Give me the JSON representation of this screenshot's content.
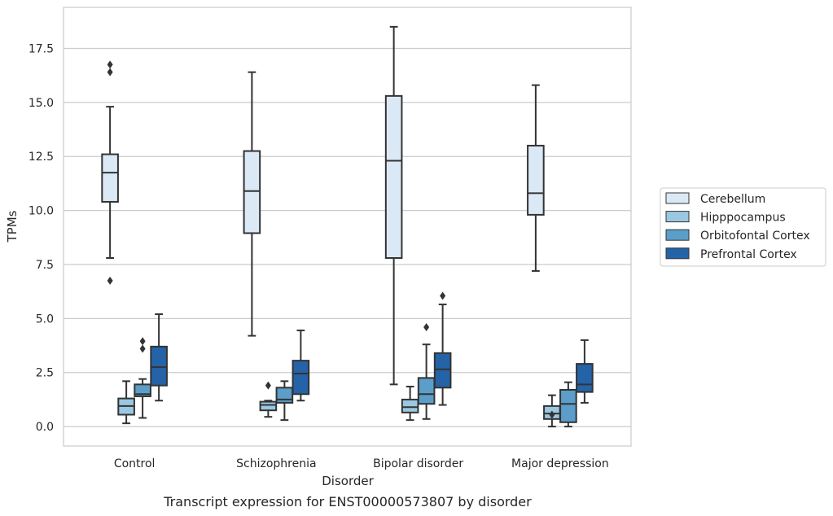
{
  "chart_data": {
    "type": "box",
    "caption": "Transcript expression for ENST00000573807 by disorder",
    "xlabel": "Disorder",
    "ylabel": "TPMs",
    "ylim": [
      -0.9,
      19.4
    ],
    "yticks": [
      0.0,
      2.5,
      5.0,
      7.5,
      10.0,
      12.5,
      15.0,
      17.5
    ],
    "ytick_labels": [
      "0.0",
      "2.5",
      "5.0",
      "7.5",
      "10.0",
      "12.5",
      "15.0",
      "17.5"
    ],
    "grid": "horizontal",
    "legend_position": "right",
    "categories": [
      "Control",
      "Schizophrenia",
      "Bipolar disorder",
      "Major depression"
    ],
    "series": [
      {
        "name": "Cerebellum",
        "color": "#dbe9f6",
        "boxes": [
          {
            "whislo": 7.8,
            "q1": 10.4,
            "med": 11.75,
            "q3": 12.6,
            "whishi": 14.8,
            "fliers": [
              16.75,
              16.4,
              6.75
            ]
          },
          {
            "whislo": 4.2,
            "q1": 8.95,
            "med": 10.9,
            "q3": 12.75,
            "whishi": 16.4,
            "fliers": []
          },
          {
            "whislo": 1.95,
            "q1": 7.8,
            "med": 12.3,
            "q3": 15.3,
            "whishi": 18.5,
            "fliers": []
          },
          {
            "whislo": 7.2,
            "q1": 9.8,
            "med": 10.8,
            "q3": 13.0,
            "whishi": 15.8,
            "fliers": []
          }
        ]
      },
      {
        "name": "Hipppocampus",
        "color": "#9ac8e0",
        "boxes": [
          {
            "whislo": 0.15,
            "q1": 0.55,
            "med": 0.95,
            "q3": 1.3,
            "whishi": 2.1,
            "fliers": []
          },
          {
            "whislo": 0.45,
            "q1": 0.75,
            "med": 1.0,
            "q3": 1.15,
            "whishi": 1.2,
            "fliers": [
              1.9
            ]
          },
          {
            "whislo": 0.3,
            "q1": 0.65,
            "med": 0.9,
            "q3": 1.25,
            "whishi": 1.85,
            "fliers": []
          },
          {
            "whislo": 0.0,
            "q1": 0.35,
            "med": 0.6,
            "q3": 0.95,
            "whishi": 1.45,
            "fliers": [
              0.55
            ]
          }
        ]
      },
      {
        "name": "Orbitofontal Cortex",
        "color": "#5a9ec9",
        "boxes": [
          {
            "whislo": 0.4,
            "q1": 1.4,
            "med": 1.5,
            "q3": 1.95,
            "whishi": 2.2,
            "fliers": [
              3.95,
              3.6
            ]
          },
          {
            "whislo": 0.3,
            "q1": 1.1,
            "med": 1.25,
            "q3": 1.8,
            "whishi": 2.1,
            "fliers": []
          },
          {
            "whislo": 0.35,
            "q1": 1.05,
            "med": 1.5,
            "q3": 2.25,
            "whishi": 3.8,
            "fliers": [
              4.6
            ]
          },
          {
            "whislo": 0.0,
            "q1": 0.2,
            "med": 1.05,
            "q3": 1.7,
            "whishi": 2.05,
            "fliers": []
          }
        ]
      },
      {
        "name": "Prefrontal Cortex",
        "color": "#2563a8",
        "boxes": [
          {
            "whislo": 1.2,
            "q1": 1.9,
            "med": 2.75,
            "q3": 3.7,
            "whishi": 5.2,
            "fliers": []
          },
          {
            "whislo": 1.2,
            "q1": 1.5,
            "med": 2.45,
            "q3": 3.05,
            "whishi": 4.45,
            "fliers": []
          },
          {
            "whislo": 1.0,
            "q1": 1.8,
            "med": 2.65,
            "q3": 3.4,
            "whishi": 5.65,
            "fliers": [
              6.05
            ]
          },
          {
            "whislo": 1.1,
            "q1": 1.6,
            "med": 1.95,
            "q3": 2.9,
            "whishi": 4.0,
            "fliers": []
          }
        ]
      }
    ]
  }
}
